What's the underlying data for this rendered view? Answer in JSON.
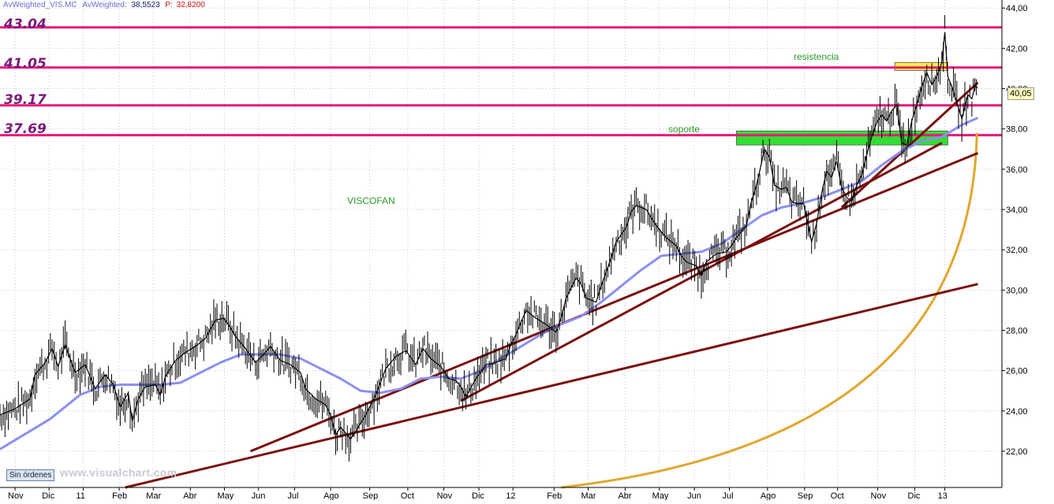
{
  "header": {
    "symbol": "AvWeighted_VIS.MC",
    "indicator": "AvWeighted:",
    "indicator_value": "38,5523",
    "p_label": "P:",
    "p_value": "32,8200"
  },
  "labels": {
    "resistance": "resistencia",
    "support": "soporte",
    "ticker": "VISCOFAN",
    "orders_button": "Sin órdenes",
    "watermark": "www.visualchart.com",
    "last_price": "40,05"
  },
  "colors": {
    "background": "#ffffff",
    "grid": "#c8c8c8",
    "price": "#000000",
    "moving_average": "#8b8ff0",
    "level_lines": "#e8197a",
    "level_labels": "#7a1a7a",
    "trendlines": "#7a1010",
    "arc": "#e0a830",
    "support_zone": "#33dd33",
    "resistance_zone": "#ffee44",
    "text_labels": "#2a9a2a"
  },
  "chart_data": {
    "type": "line",
    "title": "VISCOFAN",
    "y_axis_side": "right",
    "ylim": [
      20.2,
      44.4
    ],
    "xlim": [
      0,
      100
    ],
    "grid": true,
    "y_ticks": [
      "22,00",
      "24,00",
      "26,00",
      "28,00",
      "30,00",
      "32,00",
      "34,00",
      "36,00",
      "38,00",
      "40,00",
      "42,00",
      "44,00"
    ],
    "x_ticks": [
      {
        "x": 1.5,
        "label": "Nov"
      },
      {
        "x": 4.9,
        "label": "Dic"
      },
      {
        "x": 8.3,
        "label": "11"
      },
      {
        "x": 11.9,
        "label": "Feb"
      },
      {
        "x": 15.3,
        "label": "Mar"
      },
      {
        "x": 19.0,
        "label": "Abr"
      },
      {
        "x": 22.4,
        "label": "May"
      },
      {
        "x": 25.8,
        "label": "Jun"
      },
      {
        "x": 29.4,
        "label": "Jul"
      },
      {
        "x": 33.0,
        "label": "Ago"
      },
      {
        "x": 36.9,
        "label": "Sep"
      },
      {
        "x": 40.7,
        "label": "Oct"
      },
      {
        "x": 44.3,
        "label": "Nov"
      },
      {
        "x": 47.8,
        "label": "Dic"
      },
      {
        "x": 51.2,
        "label": "12"
      },
      {
        "x": 55.3,
        "label": "Feb"
      },
      {
        "x": 58.7,
        "label": "Mar"
      },
      {
        "x": 62.4,
        "label": "Abr"
      },
      {
        "x": 65.8,
        "label": "May"
      },
      {
        "x": 69.3,
        "label": "Jun"
      },
      {
        "x": 72.8,
        "label": "Jul"
      },
      {
        "x": 76.6,
        "label": "Ago"
      },
      {
        "x": 80.3,
        "label": "Sep"
      },
      {
        "x": 83.6,
        "label": "Oct"
      },
      {
        "x": 87.6,
        "label": "Nov"
      },
      {
        "x": 91.3,
        "label": "Dic"
      },
      {
        "x": 94.3,
        "label": "13"
      }
    ],
    "series": [
      {
        "kind": "price",
        "x": [
          0,
          1.5,
          3,
          3.5,
          4.5,
          5.2,
          5.8,
          6.5,
          7.5,
          8.5,
          9.5,
          10.5,
          11.3,
          12,
          12.8,
          13.2,
          13.8,
          14.5,
          15.5,
          16,
          16.5,
          17.5,
          18.5,
          19.5,
          20.5,
          21.5,
          22.3,
          22.8,
          23.5,
          24.5,
          25.5,
          26.3,
          27,
          28,
          29,
          30,
          30.5,
          31.5,
          32.5,
          33,
          33.5,
          34,
          35,
          36.5,
          37.5,
          38.5,
          39.5,
          40.5,
          41.5,
          42.2,
          43,
          44,
          44.8,
          45.5,
          46,
          46.5,
          47.5,
          48.5,
          49.5,
          50.5,
          51,
          51.5,
          52,
          52.5,
          53.5,
          54.5,
          55.5,
          56,
          56.5,
          57.5,
          58,
          58.5,
          59.5,
          60,
          61,
          61.5,
          62.5,
          63,
          63.5,
          64.5,
          65.5,
          66.5,
          67.5,
          68,
          68.5,
          69.5,
          70,
          70.5,
          71.5,
          72.5,
          73,
          73.5,
          74.5,
          75,
          75.5,
          76,
          76.3,
          76.8,
          77.3,
          78,
          78.5,
          79,
          79.5,
          80.2,
          80.5,
          81,
          81.5,
          82,
          82.5,
          83,
          83.5,
          84,
          84.5,
          85,
          85.5,
          86,
          86.5,
          87,
          87.5,
          88,
          88.5,
          89,
          89.5,
          90,
          90.5,
          91,
          91.5,
          92,
          92.5,
          93,
          93.5,
          94,
          94.3,
          94.6,
          95,
          95.5,
          96,
          96.3,
          96.6,
          97,
          97.3,
          97.6
        ],
        "y": [
          23.8,
          24.1,
          24.6,
          25.8,
          26.4,
          27.1,
          26.2,
          27.3,
          25.9,
          26.3,
          25.1,
          25.8,
          25.3,
          24.2,
          24.9,
          23.5,
          24.6,
          25.2,
          25.3,
          24.8,
          25.7,
          26.5,
          26.9,
          27.2,
          27.6,
          28.5,
          28.6,
          28.3,
          27.7,
          27.1,
          26.4,
          26.8,
          27.2,
          26.5,
          26.3,
          25.9,
          25.1,
          24.6,
          24.3,
          23.8,
          22.8,
          23.2,
          22.6,
          23.8,
          24.8,
          26.1,
          26.7,
          27.0,
          26.3,
          27.1,
          26.6,
          26.2,
          25.6,
          25.5,
          25.2,
          24.7,
          25.6,
          26.3,
          26.4,
          26.6,
          27.3,
          27.8,
          28.4,
          29.0,
          28.6,
          28.3,
          27.9,
          28.6,
          29.6,
          30.6,
          30.3,
          29.6,
          29.4,
          30.2,
          31.6,
          32.4,
          33.1,
          33.9,
          34.2,
          34.0,
          33.2,
          32.6,
          32.2,
          31.7,
          31.4,
          31.2,
          30.7,
          31.4,
          31.8,
          31.9,
          32.2,
          32.6,
          33.2,
          34.4,
          35.2,
          36.3,
          37.0,
          36.6,
          35.2,
          35.0,
          35.1,
          34.4,
          34.3,
          34.3,
          33.6,
          32.4,
          33.3,
          34.8,
          35.9,
          35.6,
          36.4,
          35.1,
          34.6,
          34.4,
          35.2,
          35.7,
          36.7,
          37.6,
          38.3,
          38.7,
          38.4,
          38.9,
          39.2,
          37.3,
          37.2,
          38.4,
          39.2,
          40.1,
          40.8,
          40.2,
          40.6,
          41.3,
          42.8,
          40.6,
          40.1,
          39.3,
          38.5,
          39.1,
          39.7,
          39.5,
          40.1,
          40.05
        ]
      },
      {
        "kind": "moving_average",
        "x": [
          0,
          5,
          8,
          10,
          12,
          14,
          16,
          18,
          20,
          22,
          24,
          26,
          28,
          30,
          32,
          34,
          36,
          38,
          40,
          42,
          44,
          46,
          48,
          50,
          52,
          54,
          56,
          58,
          60,
          62,
          64,
          66,
          68,
          70,
          72,
          74,
          76,
          78,
          80,
          82,
          84,
          86,
          88,
          90,
          92,
          94,
          96,
          97.6
        ],
        "y": [
          22.1,
          23.6,
          24.8,
          25.2,
          25.3,
          25.3,
          25.3,
          25.4,
          25.9,
          26.4,
          26.8,
          26.8,
          26.8,
          26.6,
          26.1,
          25.6,
          25.0,
          24.9,
          25.1,
          25.6,
          25.7,
          25.6,
          26.0,
          26.6,
          27.2,
          27.8,
          28.3,
          28.7,
          29.4,
          30.2,
          31.0,
          31.7,
          31.8,
          31.9,
          32.3,
          33.0,
          33.7,
          34.1,
          34.3,
          34.6,
          35.0,
          35.4,
          36.2,
          36.9,
          37.4,
          37.6,
          38.2,
          38.55
        ]
      }
    ],
    "horizontal_levels": [
      43.04,
      41.05,
      39.17,
      37.69
    ],
    "trendlines": [
      {
        "x": [
          12.5,
          97.6
        ],
        "y": [
          20.2,
          30.3
        ]
      },
      {
        "x": [
          25.0,
          97.6
        ],
        "y": [
          22.0,
          36.8
        ]
      },
      {
        "x": [
          46.0,
          94.0
        ],
        "y": [
          24.5,
          37.3
        ]
      },
      {
        "x": [
          84.0,
          97.6
        ],
        "y": [
          34.1,
          40.3
        ]
      }
    ],
    "arc": {
      "x": [
        56.0,
        97.5
      ],
      "y": [
        20.2,
        37.8
      ]
    },
    "zones": [
      {
        "name": "soporte",
        "x": [
          73.5,
          94.6
        ],
        "y": [
          37.2,
          37.9
        ]
      },
      {
        "name": "resistencia",
        "x": [
          89.3,
          94.6
        ],
        "y": [
          40.9,
          41.3
        ]
      }
    ]
  }
}
